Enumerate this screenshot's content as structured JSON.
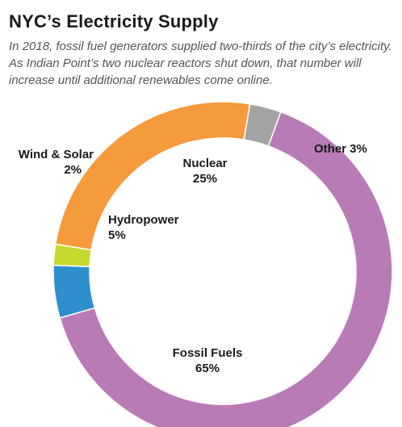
{
  "title": "NYC’s Electricity Supply",
  "subtitle": "In 2018, fossil fuel generators supplied two-thirds of the city’s electricity. As Indian Point’s two nuclear reactors shut down, that number will increase until additional renewables come online.",
  "chart_data": {
    "type": "pie",
    "donut": true,
    "title": "NYC’s Electricity Supply",
    "slices": [
      {
        "name": "Fossil Fuels",
        "value": 65,
        "value_label": "65%",
        "color": "#b97bb5"
      },
      {
        "name": "Hydropower",
        "value": 5,
        "value_label": "5%",
        "color": "#2e8fcc"
      },
      {
        "name": "Wind & Solar",
        "value": 2,
        "value_label": "2%",
        "color": "#c6d72e"
      },
      {
        "name": "Nuclear",
        "value": 25,
        "value_label": "25%",
        "color": "#f59a3d"
      },
      {
        "name": "Other",
        "value": 3,
        "value_label": "3%",
        "color": "#a3a3a3"
      }
    ],
    "labels": {
      "fossil": {
        "name": "Fossil Fuels",
        "pct": "65%"
      },
      "hydro": {
        "name": "Hydropower",
        "pct": "5%"
      },
      "wind": {
        "name": "Wind & Solar",
        "pct": "2%"
      },
      "nuclear": {
        "name": "Nuclear",
        "pct": "25%"
      },
      "other": {
        "text": "Other 3%"
      }
    }
  }
}
